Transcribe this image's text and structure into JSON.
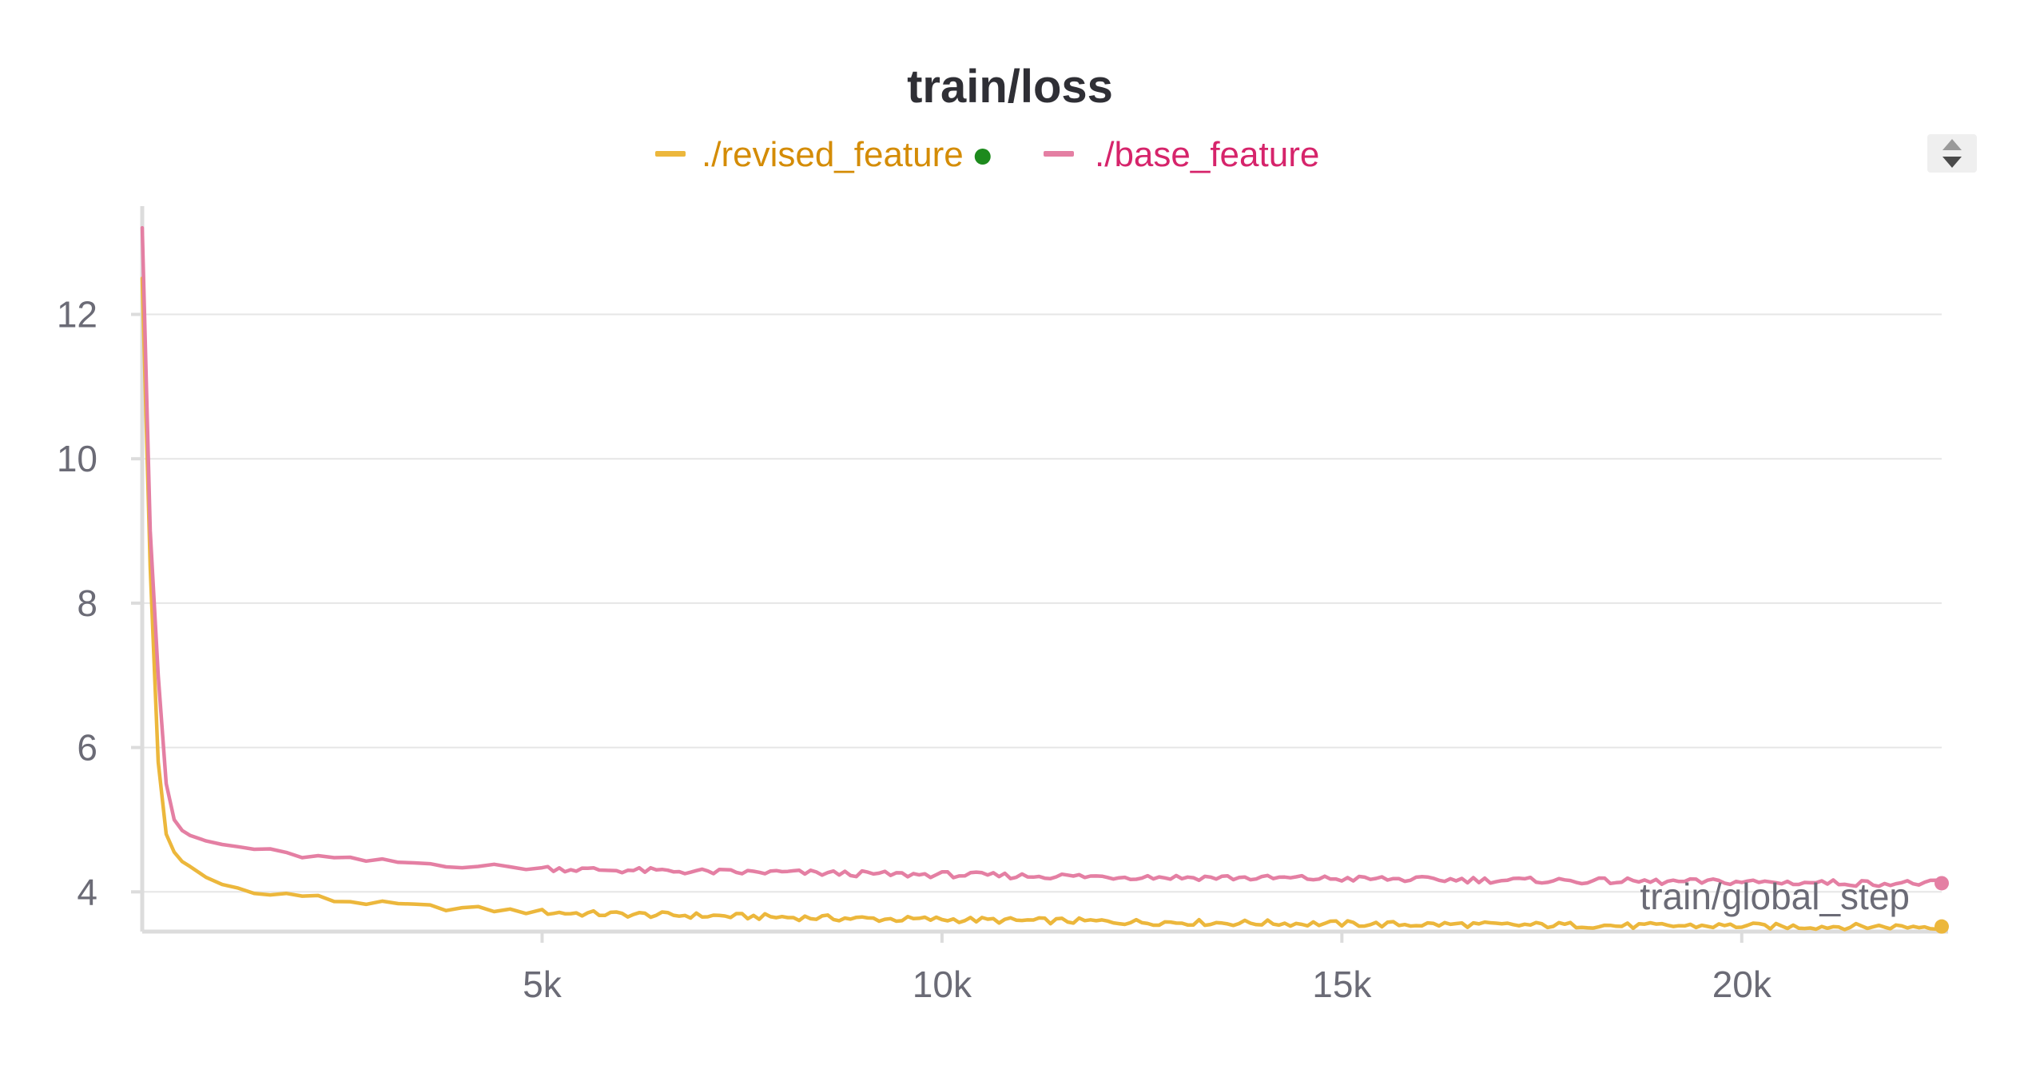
{
  "chart_data": {
    "type": "line",
    "title": "train/loss",
    "xlabel": "train/global_step",
    "ylabel": "",
    "xlim": [
      0,
      22500
    ],
    "ylim": [
      3.45,
      13.5
    ],
    "x_ticks": [
      5000,
      10000,
      15000,
      20000
    ],
    "x_tick_labels": [
      "5k",
      "10k",
      "15k",
      "20k"
    ],
    "y_ticks": [
      4,
      6,
      8,
      10,
      12
    ],
    "y_tick_labels": [
      "4",
      "6",
      "8",
      "10",
      "12"
    ],
    "grid": true,
    "legend_position": "top-center",
    "series": [
      {
        "name": "./revised_feature",
        "color": "#ecb73c",
        "legend_text_color": "#d48c06",
        "status_dot_color": "#1d8a1d",
        "x": [
          0,
          100,
          200,
          300,
          400,
          500,
          600,
          800,
          1000,
          1200,
          1400,
          1600,
          1800,
          2000,
          2200,
          2400,
          2600,
          2800,
          3000,
          3200,
          3400,
          3600,
          3800,
          4000,
          4200,
          4400,
          4600,
          4800,
          5000,
          5500,
          6000,
          6500,
          7000,
          7500,
          8000,
          8500,
          9000,
          9500,
          10000,
          10500,
          11000,
          11500,
          12000,
          12500,
          13000,
          13500,
          14000,
          14500,
          15000,
          15500,
          16000,
          16500,
          17000,
          17500,
          18000,
          18500,
          19000,
          19500,
          20000,
          20500,
          21000,
          21500,
          22000,
          22500
        ],
        "y": [
          12.5,
          8.5,
          5.8,
          4.8,
          4.55,
          4.42,
          4.35,
          4.2,
          4.1,
          4.05,
          4.02,
          3.95,
          3.97,
          3.95,
          3.92,
          3.88,
          3.87,
          3.85,
          3.83,
          3.82,
          3.8,
          3.79,
          3.78,
          3.77,
          3.76,
          3.75,
          3.74,
          3.73,
          3.72,
          3.7,
          3.69,
          3.68,
          3.67,
          3.66,
          3.65,
          3.64,
          3.63,
          3.62,
          3.62,
          3.61,
          3.6,
          3.6,
          3.59,
          3.58,
          3.58,
          3.57,
          3.57,
          3.56,
          3.56,
          3.55,
          3.55,
          3.55,
          3.54,
          3.54,
          3.54,
          3.53,
          3.53,
          3.53,
          3.53,
          3.52,
          3.52,
          3.52,
          3.52,
          3.52
        ]
      },
      {
        "name": "./base_feature",
        "color": "#e47fa3",
        "legend_text_color": "#d6246b",
        "x": [
          0,
          100,
          200,
          300,
          400,
          500,
          600,
          800,
          1000,
          1200,
          1400,
          1600,
          1800,
          2000,
          2200,
          2400,
          2600,
          2800,
          3000,
          3200,
          3400,
          3600,
          3800,
          4000,
          4200,
          4400,
          4600,
          4800,
          5000,
          5500,
          6000,
          6500,
          7000,
          7500,
          8000,
          8500,
          9000,
          9500,
          10000,
          10500,
          11000,
          11500,
          12000,
          12500,
          13000,
          13500,
          14000,
          14500,
          15000,
          15500,
          16000,
          16500,
          17000,
          17500,
          18000,
          18500,
          19000,
          19500,
          20000,
          20500,
          21000,
          21500,
          22000,
          22500
        ],
        "y": [
          13.2,
          9.0,
          7.0,
          5.5,
          5.0,
          4.85,
          4.78,
          4.7,
          4.65,
          4.62,
          4.6,
          4.56,
          4.52,
          4.5,
          4.48,
          4.46,
          4.44,
          4.43,
          4.42,
          4.41,
          4.4,
          4.39,
          4.38,
          4.37,
          4.36,
          4.35,
          4.34,
          4.34,
          4.33,
          4.31,
          4.3,
          4.29,
          4.28,
          4.27,
          4.27,
          4.26,
          4.25,
          4.24,
          4.24,
          4.23,
          4.22,
          4.22,
          4.21,
          4.21,
          4.2,
          4.2,
          4.19,
          4.19,
          4.18,
          4.18,
          4.17,
          4.17,
          4.16,
          4.16,
          4.15,
          4.15,
          4.14,
          4.14,
          4.14,
          4.13,
          4.13,
          4.12,
          4.12,
          4.12
        ]
      }
    ]
  }
}
